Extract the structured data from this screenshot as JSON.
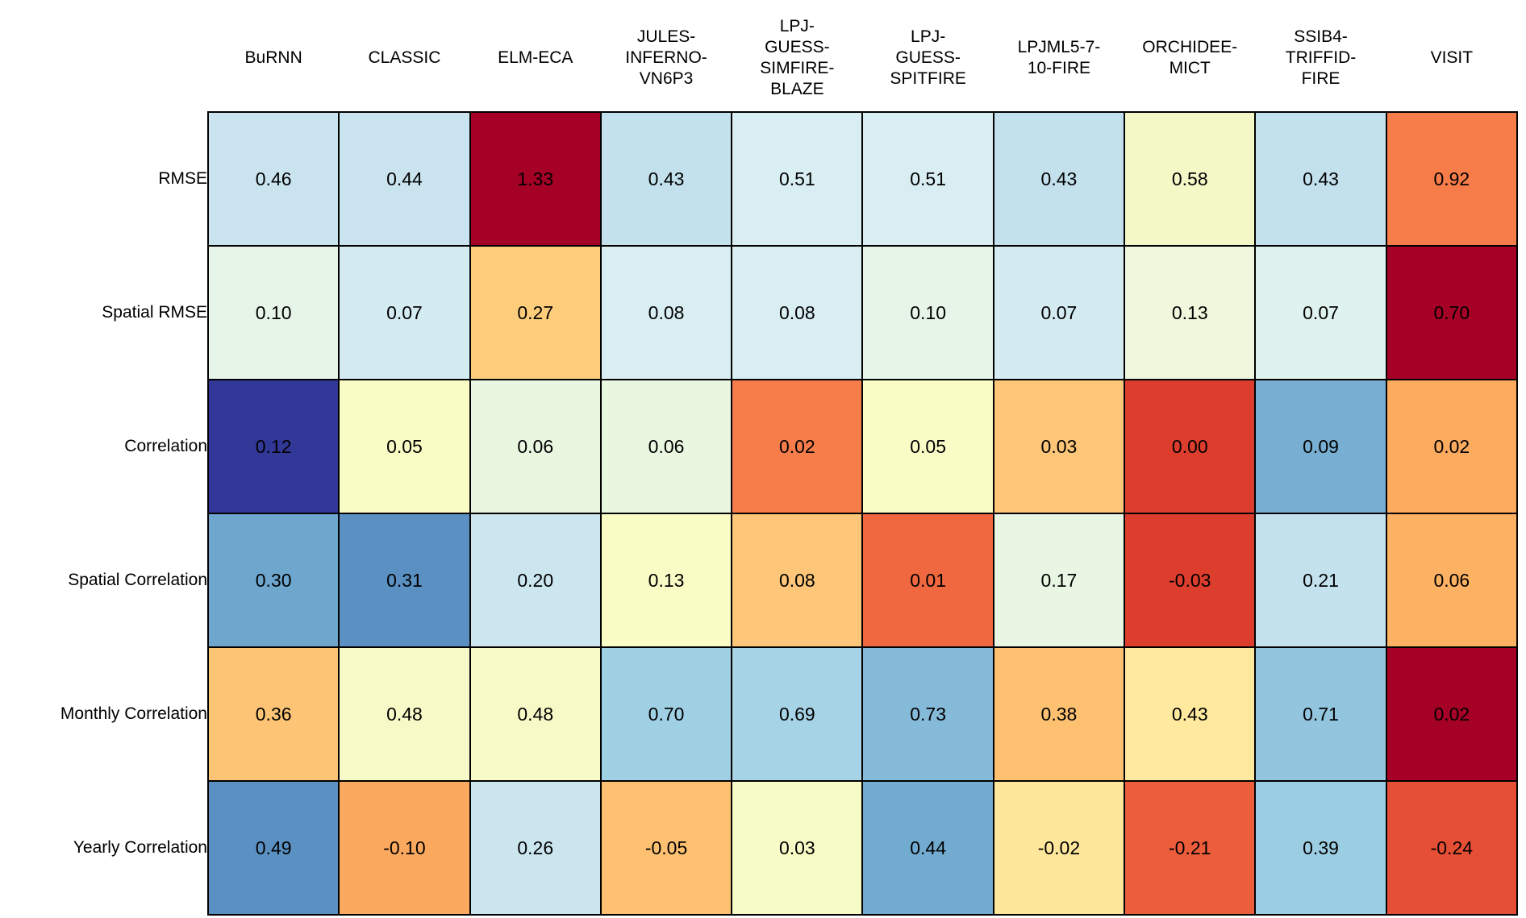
{
  "figure": {
    "background": "#ffffff",
    "text_color": "#000000",
    "grid_line_color": "#000000"
  },
  "chart_data": {
    "type": "heatmap",
    "title": "",
    "columns": [
      "BuRNN",
      "CLASSIC",
      "ELM-ECA",
      "JULES-INFERNO-VN6P3",
      "LPJ-GUESS-SIMFIRE-BLAZE",
      "LPJ-GUESS-SPITFIRE",
      "LPJML5-7-10-FIRE",
      "ORCHIDEE-MICT",
      "SSIB4-TRIFFID-FIRE",
      "VISIT"
    ],
    "column_display": [
      "BuRNN",
      "CLASSIC",
      "ELM-ECA",
      "JULES-\nINFERNO-\nVN6P3",
      "LPJ-\nGUESS-\nSIMFIRE-\nBLAZE",
      "LPJ-\nGUESS-\nSPITFIRE",
      "LPJML5-7-\n10-FIRE",
      "ORCHIDEE-\nMICT",
      "SSIB4-\nTRIFFID-\nFIRE",
      "VISIT"
    ],
    "rows": [
      "RMSE",
      "Spatial RMSE",
      "Correlation",
      "Spatial Correlation",
      "Monthly Correlation",
      "Yearly Correlation"
    ],
    "values": [
      [
        0.46,
        0.44,
        1.33,
        0.43,
        0.51,
        0.51,
        0.43,
        0.58,
        0.43,
        0.92
      ],
      [
        0.1,
        0.07,
        0.27,
        0.08,
        0.08,
        0.1,
        0.07,
        0.13,
        0.07,
        0.7
      ],
      [
        0.12,
        0.05,
        0.06,
        0.06,
        0.02,
        0.05,
        0.03,
        0.0,
        0.09,
        0.02
      ],
      [
        0.3,
        0.31,
        0.2,
        0.13,
        0.08,
        0.01,
        0.17,
        -0.03,
        0.21,
        0.06
      ],
      [
        0.36,
        0.48,
        0.48,
        0.7,
        0.69,
        0.73,
        0.38,
        0.43,
        0.71,
        0.02
      ],
      [
        0.49,
        -0.1,
        0.26,
        -0.05,
        0.03,
        0.44,
        -0.02,
        -0.21,
        0.39,
        -0.24
      ]
    ],
    "cell_colors": [
      [
        "#c9e4ef",
        "#c9e4ef",
        "#a50026",
        "#c3e1ed",
        "#d9eef2",
        "#d9eef2",
        "#c3e1ed",
        "#f3f8c6",
        "#c3e1ed",
        "#f67c4a"
      ],
      [
        "#e7f5e9",
        "#d3ebf1",
        "#fdcd7c",
        "#d9eef2",
        "#d9eef2",
        "#e7f5e9",
        "#d3ebf1",
        "#eff8dc",
        "#e0f2ee",
        "#a50026"
      ],
      [
        "#323897",
        "#fafcc6",
        "#eaf7e0",
        "#eaf7e0",
        "#f67c4a",
        "#fafcc6",
        "#fdc678",
        "#dc3d2d",
        "#77aed2",
        "#fcab5f"
      ],
      [
        "#6ea6cd",
        "#5a90c2",
        "#cce6f0",
        "#f9fcc5",
        "#fdc678",
        "#ef6840",
        "#e8f6e3",
        "#dc3d2d",
        "#c4e1ee",
        "#fdb163"
      ],
      [
        "#fdc475",
        "#f7fac7",
        "#f7fac7",
        "#a0d0e4",
        "#a6d3e6",
        "#85bad9",
        "#fdc171",
        "#fee99e",
        "#93c5de",
        "#a50026"
      ],
      [
        "#5a90c2",
        "#fba95e",
        "#cbe5ef",
        "#fdc171",
        "#f7fbc5",
        "#72abd0",
        "#fee79b",
        "#ec5d3b",
        "#9ccee3",
        "#e54f35"
      ]
    ],
    "value_format": "2dp",
    "legend": "none",
    "grid": "on"
  }
}
